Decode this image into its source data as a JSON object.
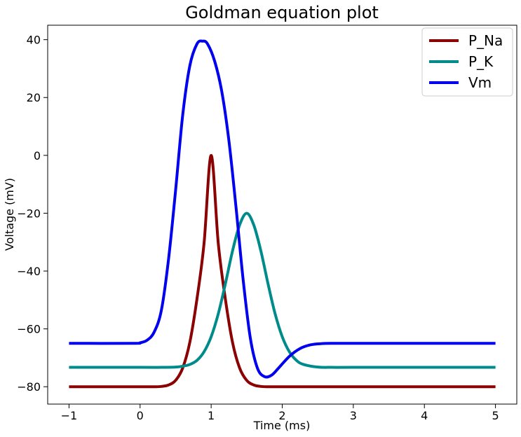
{
  "chart_data": {
    "type": "line",
    "title": "Goldman equation plot",
    "xlabel": "Time (ms)",
    "ylabel": "Voltage (mV)",
    "xlim": [
      -1.3,
      5.3
    ],
    "ylim": [
      -86,
      45
    ],
    "xticks": [
      -1,
      0,
      1,
      2,
      3,
      4,
      5
    ],
    "xtick_labels": [
      "−1",
      "0",
      "1",
      "2",
      "3",
      "4",
      "5"
    ],
    "yticks": [
      -80,
      -60,
      -40,
      -20,
      0,
      20,
      40
    ],
    "ytick_labels": [
      "−80",
      "−60",
      "−40",
      "−20",
      "0",
      "20",
      "40"
    ],
    "grid": false,
    "legend_position": "top-right",
    "series": [
      {
        "name": "P_Na",
        "color": "#8b0000",
        "x": [
          -1.0,
          0.0,
          0.2,
          0.3,
          0.4,
          0.5,
          0.6,
          0.7,
          0.8,
          0.9,
          1.0,
          1.1,
          1.2,
          1.3,
          1.4,
          1.5,
          1.6,
          1.7,
          1.8,
          2.0,
          3.0,
          4.0,
          5.0
        ],
        "y": [
          -80.0,
          -80.0,
          -80.0,
          -79.9,
          -79.4,
          -77.8,
          -73.5,
          -64.6,
          -49.7,
          -30.4,
          0.0,
          -30.4,
          -49.7,
          -64.6,
          -73.5,
          -77.8,
          -79.4,
          -79.9,
          -80.0,
          -80.0,
          -80.0,
          -80.0,
          -80.0
        ]
      },
      {
        "name": "P_K",
        "color": "#008b8b",
        "x": [
          -1.0,
          0.0,
          0.3,
          0.5,
          0.6,
          0.7,
          0.8,
          0.9,
          1.0,
          1.1,
          1.2,
          1.3,
          1.4,
          1.5,
          1.6,
          1.7,
          1.8,
          1.9,
          2.0,
          2.1,
          2.2,
          2.3,
          2.5,
          2.7,
          3.0,
          4.0,
          5.0
        ],
        "y": [
          -73.3,
          -73.3,
          -73.3,
          -73.2,
          -72.9,
          -72.3,
          -70.9,
          -67.9,
          -62.7,
          -54.8,
          -44.4,
          -33.1,
          -24.1,
          -20.0,
          -24.1,
          -33.1,
          -44.4,
          -54.8,
          -62.7,
          -67.9,
          -70.9,
          -72.3,
          -73.2,
          -73.3,
          -73.3,
          -73.3,
          -73.3
        ]
      },
      {
        "name": "Vm",
        "color": "#0000ee",
        "x": [
          -1.0,
          -0.1,
          0.0,
          0.1,
          0.2,
          0.3,
          0.4,
          0.5,
          0.6,
          0.7,
          0.8,
          0.88,
          0.95,
          1.05,
          1.15,
          1.25,
          1.35,
          1.45,
          1.55,
          1.65,
          1.75,
          1.85,
          1.95,
          2.1,
          2.25,
          2.4,
          2.55,
          2.7,
          3.0,
          4.0,
          5.0
        ],
        "y": [
          -65.0,
          -65.0,
          -64.8,
          -63.9,
          -61.0,
          -53.5,
          -36.0,
          -12.0,
          14.0,
          31.0,
          38.5,
          39.5,
          38.5,
          32.5,
          22.0,
          5.0,
          -18.0,
          -43.0,
          -63.0,
          -73.5,
          -76.5,
          -76.0,
          -73.5,
          -69.5,
          -66.8,
          -65.5,
          -65.1,
          -65.0,
          -65.0,
          -65.0,
          -65.0
        ]
      }
    ]
  }
}
